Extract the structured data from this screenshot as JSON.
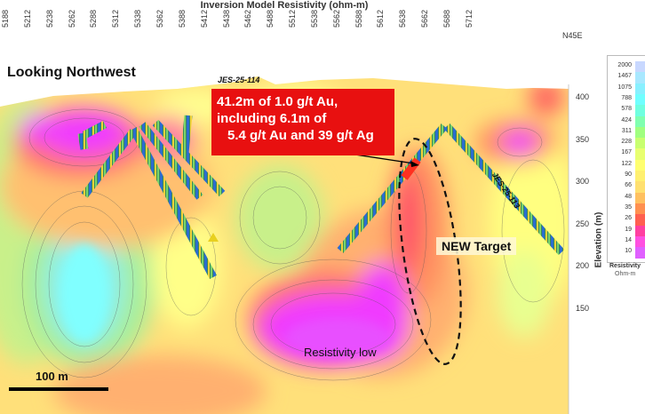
{
  "header": {
    "title": "Inversion Model Resistivity (ohm-m)",
    "orientation": "N45E",
    "x_ticks": [
      "5188",
      "5212",
      "5238",
      "5262",
      "5288",
      "5312",
      "5338",
      "5362",
      "5388",
      "5412",
      "5438",
      "5462",
      "5488",
      "5512",
      "5538",
      "5562",
      "5588",
      "5612",
      "5638",
      "5662",
      "5688",
      "5712"
    ]
  },
  "elevation_axis": {
    "label": "Elevation (m)",
    "ticks": [
      "400",
      "350",
      "300",
      "250",
      "200",
      "150"
    ]
  },
  "annotations": {
    "view_direction": "Looking Northwest",
    "drillhole_a": "JES-25-114",
    "drillhole_b": "JES-25-113",
    "callout_lines": [
      "41.2m of 1.0 g/t Au,",
      "including 6.1m of",
      "5.4 g/t Au and 39 g/t Ag"
    ],
    "target_label": "NEW Target",
    "anomaly_label": "Resistivity low",
    "scale_label": "100 m"
  },
  "legend": {
    "values": [
      "2000",
      "1467",
      "1075",
      "788",
      "578",
      "424",
      "311",
      "228",
      "167",
      "122",
      "90",
      "66",
      "48",
      "35",
      "26",
      "19",
      "14",
      "10"
    ],
    "colors": [
      "#c8d8ff",
      "#a8e8ff",
      "#88f0ff",
      "#70ffff",
      "#70ffe0",
      "#80ffb0",
      "#a0ff80",
      "#c8ff70",
      "#e8ff70",
      "#ffff70",
      "#fff070",
      "#ffe070",
      "#ffc060",
      "#ff9050",
      "#ff6050",
      "#ff40a0",
      "#ff50e0",
      "#e060ff"
    ],
    "title": "Resistivity",
    "unit": "Ohm-m"
  },
  "colors": {
    "callout_bg": "#e81010",
    "background": "#ffffff"
  }
}
